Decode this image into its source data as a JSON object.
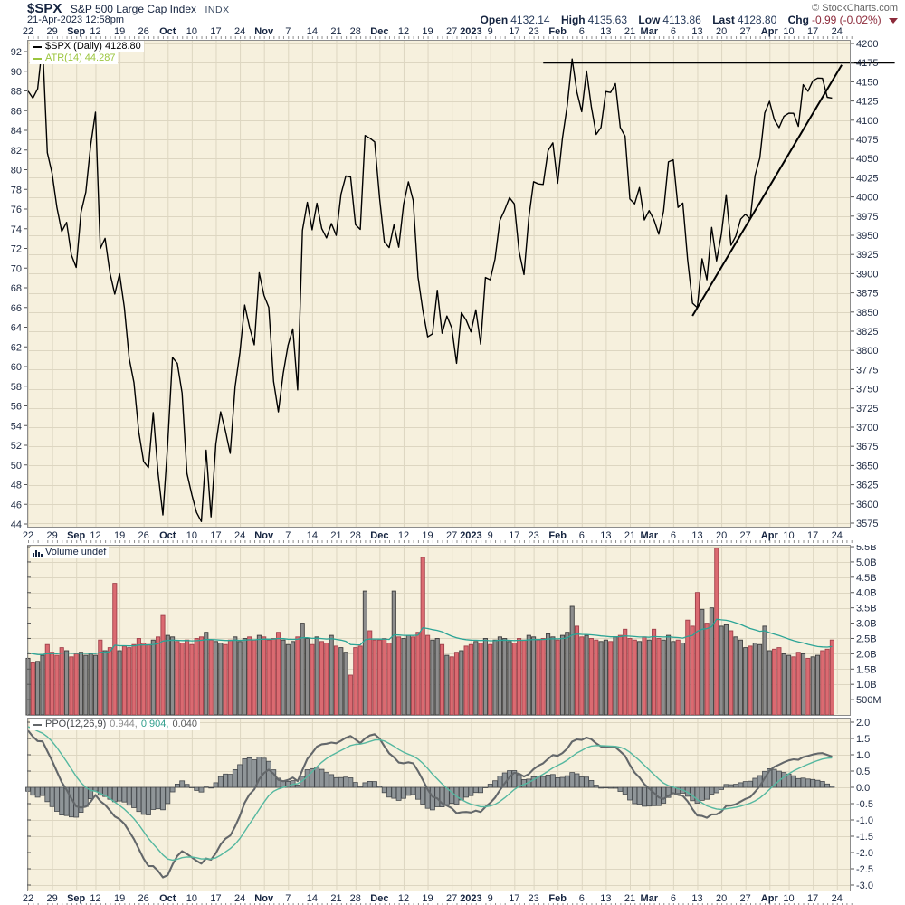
{
  "header": {
    "symbol": "$SPX",
    "name": "S&P 500 Large Cap Index",
    "exchange": "INDX",
    "datetime": "21-Apr-2023 12:58pm",
    "copyright": "© StockCharts.com",
    "quote": {
      "open_label": "Open",
      "open_value": "4132.14",
      "high_label": "High",
      "high_value": "4135.63",
      "low_label": "Low",
      "low_value": "4113.86",
      "last_label": "Last",
      "last_value": "4128.80",
      "chg_label": "Chg",
      "chg_value": "-0.99 (-0.02%)"
    }
  },
  "legends": {
    "price": "$SPX (Daily) 4128.80",
    "atr": "ATR(14) 44.287",
    "volume": "Volume undef",
    "ppo_name": "PPO(12,26,9)",
    "ppo_v1": "0.944,",
    "ppo_v2": "0.904,",
    "ppo_v3": "0.040"
  },
  "axes": {
    "price_right": [
      4200,
      4175,
      4150,
      4125,
      4100,
      4075,
      4050,
      4025,
      4000,
      3975,
      3950,
      3925,
      3900,
      3875,
      3850,
      3825,
      3800,
      3775,
      3750,
      3725,
      3700,
      3675,
      3650,
      3625,
      3600,
      3575
    ],
    "price_left": [
      92,
      90,
      88,
      86,
      84,
      82,
      80,
      78,
      76,
      74,
      72,
      70,
      68,
      66,
      64,
      62,
      60,
      58,
      56,
      54,
      52,
      50,
      48,
      46,
      44
    ],
    "volume_right": [
      {
        "label": "5.5B",
        "value": 5.5
      },
      {
        "label": "5.0B",
        "value": 5.0
      },
      {
        "label": "4.5B",
        "value": 4.5
      },
      {
        "label": "4.0B",
        "value": 4.0
      },
      {
        "label": "3.5B",
        "value": 3.5
      },
      {
        "label": "3.0B",
        "value": 3.0
      },
      {
        "label": "2.5B",
        "value": 2.5
      },
      {
        "label": "2.0B",
        "value": 2.0
      },
      {
        "label": "1.5B",
        "value": 1.5
      },
      {
        "label": "1.0B",
        "value": 1.0
      },
      {
        "label": "500M",
        "value": 0.5
      }
    ],
    "ppo_right": [
      {
        "label": "2.0",
        "value": 2.0
      },
      {
        "label": "1.5",
        "value": 1.5
      },
      {
        "label": "1.0",
        "value": 1.0
      },
      {
        "label": "0.5",
        "value": 0.5
      },
      {
        "label": "0.0",
        "value": 0.0
      },
      {
        "label": "-0.5",
        "value": -0.5
      },
      {
        "label": "-1.0",
        "value": -1.0
      },
      {
        "label": "-1.5",
        "value": -1.5
      },
      {
        "label": "-2.0",
        "value": -2.0
      },
      {
        "label": "-2.5",
        "value": -2.5
      },
      {
        "label": "-3.0",
        "value": -3.0
      }
    ],
    "dates": [
      {
        "label": "22",
        "day": 0
      },
      {
        "label": "29",
        "day": 5
      },
      {
        "label": "Sep",
        "day": 10,
        "bold": true
      },
      {
        "label": "12",
        "day": 14
      },
      {
        "label": "19",
        "day": 19
      },
      {
        "label": "26",
        "day": 24
      },
      {
        "label": "Oct",
        "day": 29,
        "bold": true
      },
      {
        "label": "10",
        "day": 34
      },
      {
        "label": "17",
        "day": 39
      },
      {
        "label": "24",
        "day": 44
      },
      {
        "label": "Nov",
        "day": 49,
        "bold": true
      },
      {
        "label": "7",
        "day": 54
      },
      {
        "label": "14",
        "day": 59
      },
      {
        "label": "21",
        "day": 64
      },
      {
        "label": "28",
        "day": 68
      },
      {
        "label": "Dec",
        "day": 73,
        "bold": true
      },
      {
        "label": "12",
        "day": 78
      },
      {
        "label": "19",
        "day": 83
      },
      {
        "label": "27",
        "day": 88
      },
      {
        "label": "2023",
        "day": 92,
        "bold": true
      },
      {
        "label": "9",
        "day": 96
      },
      {
        "label": "17",
        "day": 101
      },
      {
        "label": "23",
        "day": 105
      },
      {
        "label": "Feb",
        "day": 110,
        "bold": true
      },
      {
        "label": "6",
        "day": 115
      },
      {
        "label": "13",
        "day": 120
      },
      {
        "label": "21",
        "day": 125
      },
      {
        "label": "Mar",
        "day": 129,
        "bold": true
      },
      {
        "label": "6",
        "day": 134
      },
      {
        "label": "13",
        "day": 139
      },
      {
        "label": "20",
        "day": 144
      },
      {
        "label": "27",
        "day": 149
      },
      {
        "label": "Apr",
        "day": 154,
        "bold": true
      },
      {
        "label": "10",
        "day": 158
      },
      {
        "label": "17",
        "day": 163
      },
      {
        "label": "24",
        "day": 168
      }
    ]
  },
  "colors": {
    "panel_bg": "#f6f0dd",
    "grid": "#ddd6c1",
    "border": "#8c8c8c",
    "axis_text": "#1c2840",
    "date_text": "#14233f",
    "price_line": "#000000",
    "trendline": "#000000",
    "vol_up_fill": "#8d8d8d",
    "vol_up_stroke": "#3c3c3c",
    "vol_down_fill": "#db6a71",
    "vol_down_stroke": "#a0414b",
    "vol_ma": "#2ba496",
    "ppo_hist_fill": "#8f9598",
    "ppo_hist_stroke": "#45494d",
    "ppo_line": "#63676a",
    "ppo_signal": "#55b8a0",
    "atr_green": "#9bc53d",
    "chg_down": "#8c2a3a"
  },
  "chart_data": [
    {
      "type": "line",
      "title": "$SPX daily close",
      "x_unit": "trading days 22-Aug-2022 through 21-Apr-2023",
      "ylim": [
        3575,
        4200
      ],
      "ylabel_right": "price",
      "values": [
        4137.99,
        4128.73,
        4140.77,
        4199.12,
        4057.66,
        4030.61,
        3986.16,
        3955.0,
        3966.85,
        3924.26,
        3908.19,
        3979.87,
        4006.18,
        4067.36,
        4110.41,
        3932.69,
        3946.01,
        3901.35,
        3873.33,
        3899.89,
        3855.93,
        3789.93,
        3757.99,
        3693.23,
        3655.04,
        3647.29,
        3719.04,
        3640.47,
        3585.62,
        3678.43,
        3790.93,
        3783.28,
        3744.52,
        3639.66,
        3612.39,
        3588.84,
        3577.03,
        3669.91,
        3583.07,
        3677.95,
        3719.98,
        3695.16,
        3665.78,
        3752.75,
        3797.34,
        3859.11,
        3830.6,
        3807.3,
        3901.06,
        3871.98,
        3856.1,
        3759.69,
        3719.89,
        3770.55,
        3806.8,
        3828.11,
        3748.57,
        3956.37,
        3992.93,
        3957.25,
        3991.73,
        3958.79,
        3946.56,
        3965.34,
        3949.94,
        4003.58,
        4027.26,
        4026.12,
        3963.94,
        3957.63,
        4080.11,
        4076.57,
        4071.7,
        3998.84,
        3941.26,
        3933.92,
        3963.51,
        3934.38,
        3990.56,
        4019.65,
        3995.32,
        3895.75,
        3852.36,
        3817.66,
        3821.62,
        3878.44,
        3822.39,
        3844.82,
        3829.25,
        3783.22,
        3849.28,
        3839.5,
        3824.14,
        3852.97,
        3808.1,
        3895.08,
        3892.09,
        3919.25,
        3969.61,
        3983.17,
        3999.09,
        3990.97,
        3928.86,
        3898.85,
        3972.61,
        4019.81,
        4016.95,
        4016.22,
        4060.43,
        4070.56,
        4017.77,
        4076.6,
        4119.21,
        4179.76,
        4136.48,
        4111.08,
        4164.0,
        4117.86,
        4081.5,
        4090.46,
        4137.29,
        4136.13,
        4147.6,
        4090.41,
        4079.09,
        3997.34,
        3991.05,
        4012.32,
        3970.04,
        3982.24,
        3970.15,
        3951.39,
        3981.35,
        4045.64,
        4048.42,
        3986.37,
        3992.01,
        3918.32,
        3861.59,
        3855.76,
        3919.29,
        3891.93,
        3960.28,
        3916.64,
        3951.57,
        4002.87,
        3936.97,
        3948.72,
        3970.99,
        3977.53,
        3971.27,
        4027.81,
        4050.83,
        4109.31,
        4124.51,
        4100.6,
        4090.38,
        4105.02,
        4109.11,
        4108.94,
        4091.95,
        4146.22,
        4137.64,
        4151.32,
        4154.87,
        4154.52,
        4129.79,
        4128.8
      ],
      "annotations": [
        {
          "type": "hline",
          "y": 4175,
          "x1_day": 107,
          "x2_day": 180
        },
        {
          "type": "line",
          "x1_day": 138,
          "y1": 3845,
          "x2_day": 169,
          "y2": 4172
        }
      ]
    },
    {
      "type": "bar",
      "title": "Volume",
      "unit": "billions of shares",
      "ylim": [
        0,
        5.56
      ],
      "bar_color_rule": "red if close down vs prior day, gray if up",
      "ma": {
        "kind": "ema",
        "period": 20,
        "seed": 2.05
      },
      "values": [
        1.85,
        1.7,
        1.75,
        1.95,
        2.3,
        2.05,
        1.95,
        2.2,
        2.1,
        1.9,
        2.0,
        2.05,
        1.95,
        2.0,
        1.95,
        2.45,
        2.1,
        2.2,
        4.3,
        2.1,
        2.25,
        2.2,
        2.3,
        2.5,
        2.35,
        2.3,
        2.45,
        2.55,
        3.25,
        2.6,
        2.55,
        2.4,
        2.35,
        2.45,
        2.3,
        2.5,
        2.55,
        2.7,
        2.45,
        2.4,
        2.35,
        2.3,
        2.45,
        2.55,
        2.4,
        2.5,
        2.55,
        2.45,
        2.6,
        2.55,
        2.45,
        2.5,
        2.7,
        2.45,
        2.3,
        2.4,
        2.55,
        3.0,
        2.5,
        2.3,
        2.55,
        2.4,
        2.35,
        2.6,
        2.25,
        2.2,
        2.05,
        1.3,
        2.2,
        2.25,
        4.05,
        2.75,
        2.45,
        2.45,
        2.5,
        2.35,
        4.05,
        2.55,
        2.5,
        2.6,
        2.55,
        2.7,
        5.15,
        2.6,
        2.45,
        2.5,
        2.3,
        1.95,
        1.9,
        2.05,
        2.1,
        2.25,
        2.3,
        2.4,
        2.35,
        2.5,
        2.3,
        2.45,
        2.55,
        2.5,
        2.4,
        2.35,
        2.5,
        2.45,
        2.6,
        2.55,
        2.45,
        2.5,
        2.65,
        2.55,
        2.45,
        2.6,
        2.7,
        3.55,
        2.9,
        2.55,
        2.6,
        2.5,
        2.45,
        2.4,
        2.45,
        2.4,
        2.55,
        2.6,
        2.8,
        2.5,
        2.45,
        2.4,
        2.55,
        2.45,
        2.8,
        2.5,
        2.45,
        2.6,
        2.4,
        2.45,
        2.35,
        3.1,
        2.9,
        4.0,
        3.45,
        3.0,
        3.5,
        5.45,
        2.9,
        2.95,
        2.75,
        2.55,
        2.45,
        2.2,
        2.25,
        2.35,
        2.3,
        2.9,
        2.1,
        2.15,
        2.2,
        2.0,
        1.95,
        1.9,
        2.05,
        2.0,
        1.85,
        1.9,
        1.95,
        2.1,
        2.15,
        2.45
      ]
    },
    {
      "type": "line",
      "title": "PPO(12,26,9) with signal line and histogram",
      "ylim": [
        -3,
        2
      ],
      "derived_from": "closes of panel 1",
      "params": {
        "fast": 12,
        "slow": 26,
        "signal": 9,
        "ema_fast_seed_factor": 1.005,
        "ema_slow_seed_factor": 0.986,
        "signal_seed_offset": 0.15
      },
      "last_values": [
        0.944,
        0.904,
        0.04
      ]
    }
  ]
}
